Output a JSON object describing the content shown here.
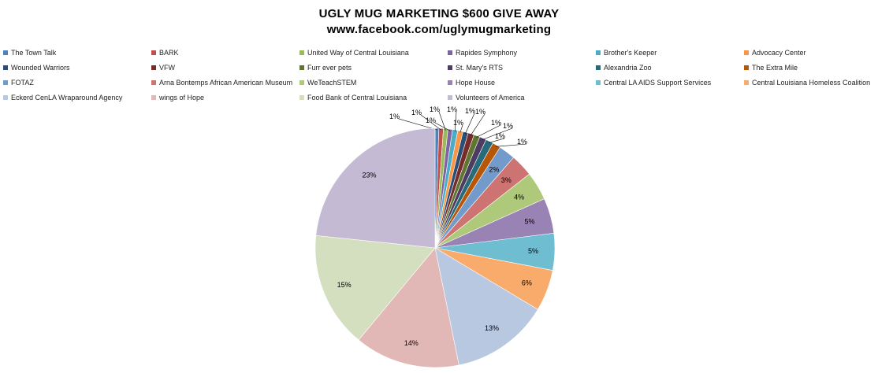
{
  "chart_data": {
    "type": "pie",
    "title": "UGLY MUG MARKETING $600 GIVE AWAY",
    "subtitle": "www.facebook.com/uglymugmarketing",
    "legend_position": "top",
    "slices": [
      {
        "name": "The Town Talk",
        "value": 0.5,
        "label": "1%",
        "color": "#4F81BD"
      },
      {
        "name": "BARK",
        "value": 0.6,
        "label": "1%",
        "color": "#C0504D"
      },
      {
        "name": "United Way of Central Louisiana",
        "value": 0.6,
        "label": "1%",
        "color": "#9BBB59"
      },
      {
        "name": "Rapides Symphony",
        "value": 0.6,
        "label": "1%",
        "color": "#8064A2"
      },
      {
        "name": "Brother's Keeper",
        "value": 0.7,
        "label": "1%",
        "color": "#4BACC6"
      },
      {
        "name": "Advocacy Center",
        "value": 0.7,
        "label": "1%",
        "color": "#F79646"
      },
      {
        "name": "Wounded Warriors",
        "value": 0.7,
        "label": "1%",
        "color": "#2C4D75"
      },
      {
        "name": "VFW",
        "value": 0.8,
        "label": "1%",
        "color": "#772C2A"
      },
      {
        "name": "Furr ever pets",
        "value": 0.8,
        "label": "1%",
        "color": "#5F7530"
      },
      {
        "name": "St. Mary's RTS",
        "value": 0.9,
        "label": "1%",
        "color": "#4D3B62"
      },
      {
        "name": "Alexandria Zoo",
        "value": 1.0,
        "label": "1%",
        "color": "#276A7C"
      },
      {
        "name": "The Extra Mile",
        "value": 1.1,
        "label": "1%",
        "color": "#B65708"
      },
      {
        "name": "FOTAZ",
        "value": 2.2,
        "label": "2%",
        "color": "#729ACA"
      },
      {
        "name": "Arna Bontemps African American Museum",
        "value": 3.0,
        "label": "3%",
        "color": "#CD7371"
      },
      {
        "name": "WeTeachSTEM",
        "value": 3.8,
        "label": "4%",
        "color": "#AFC97A"
      },
      {
        "name": "Hope House",
        "value": 4.7,
        "label": "5%",
        "color": "#9983B5"
      },
      {
        "name": "Central LA AIDS Support Services",
        "value": 4.9,
        "label": "5%",
        "color": "#6FBDD1"
      },
      {
        "name": "Central Louisiana Homeless Coalition",
        "value": 5.5,
        "label": "6%",
        "color": "#F9AB6B"
      },
      {
        "name": "Eckerd CenLA Wraparound Agency",
        "value": 13.0,
        "label": "13%",
        "color": "#B9C8E1"
      },
      {
        "name": "wings of Hope",
        "value": 14.0,
        "label": "14%",
        "color": "#E2B8B7"
      },
      {
        "name": "Food Bank of Central Louisiana",
        "value": 15.4,
        "label": "15%",
        "color": "#D3DFBE"
      },
      {
        "name": "Volunteers of America",
        "value": 23.0,
        "label": "23%",
        "color": "#C4BAD3"
      }
    ]
  }
}
